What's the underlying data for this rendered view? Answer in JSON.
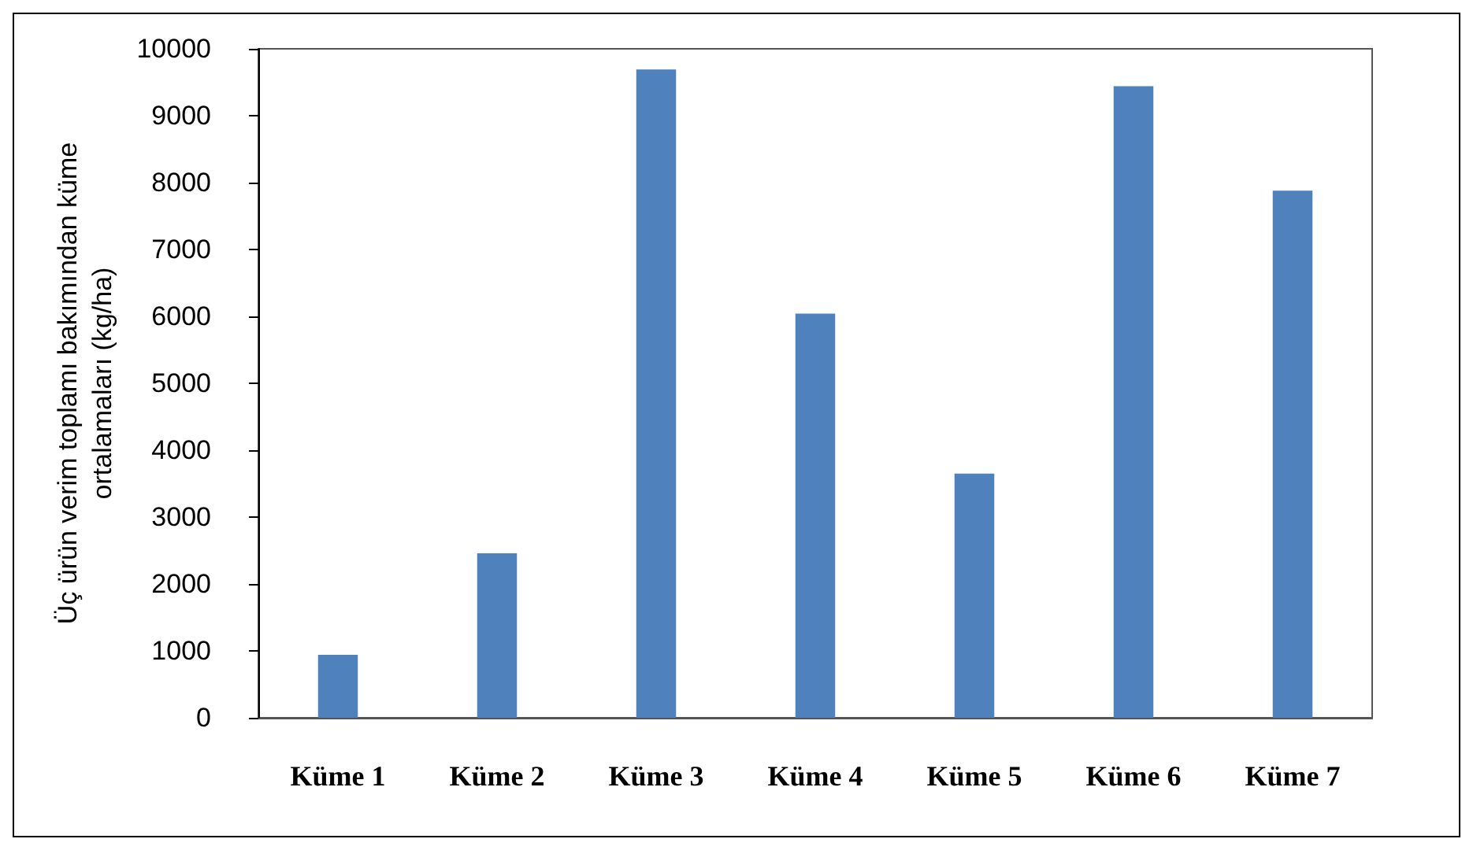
{
  "chart_data": {
    "type": "bar",
    "ylabel": "Üç ürün verim toplamı bakımından küme ortalamaları (kg/ha)",
    "categories": [
      "Küme 1",
      "Küme 2",
      "Küme 3",
      "Küme 4",
      "Küme 5",
      "Küme 6",
      "Küme 7"
    ],
    "values": [
      940,
      2460,
      9690,
      6040,
      3650,
      9440,
      7880
    ],
    "color": "#4f81bd",
    "ylim": [
      0,
      10000
    ],
    "yticks": [
      0,
      1000,
      2000,
      3000,
      4000,
      5000,
      6000,
      7000,
      8000,
      9000,
      10000
    ],
    "grid": false
  }
}
